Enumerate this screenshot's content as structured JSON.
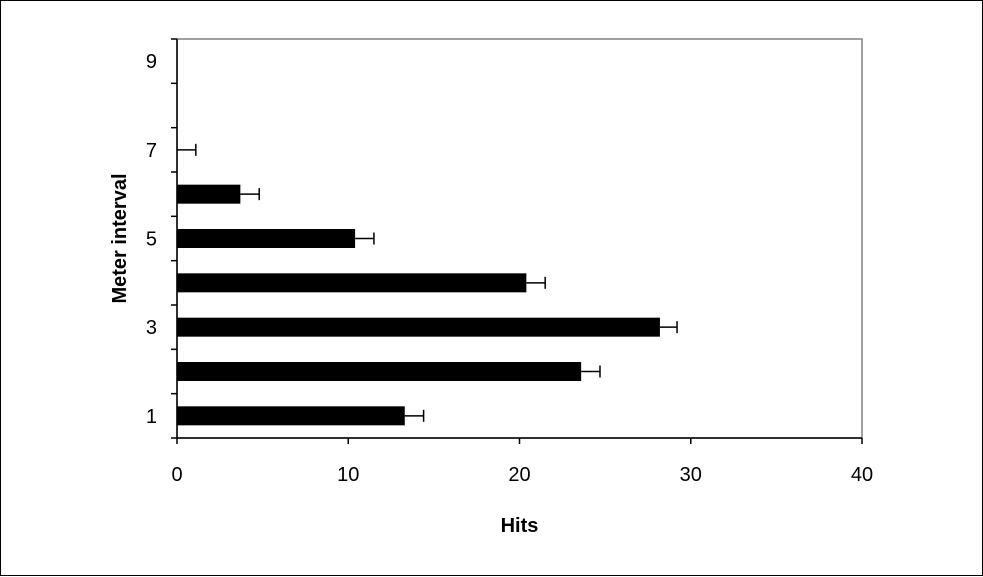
{
  "chart_data": {
    "type": "bar",
    "orientation": "horizontal",
    "xlabel": "Hits",
    "ylabel": "Meter interval",
    "xlim": [
      0,
      40
    ],
    "x_ticks": [
      0,
      10,
      20,
      30,
      40
    ],
    "ylim": [
      0.5,
      9.5
    ],
    "y_tick_labels": [
      "1",
      "3",
      "5",
      "7",
      "9"
    ],
    "categories": [
      1,
      2,
      3,
      4,
      5,
      6,
      7,
      8,
      9
    ],
    "values": [
      13.3,
      23.6,
      28.2,
      20.4,
      10.4,
      3.7,
      0,
      0,
      0
    ],
    "errors": [
      1.1,
      1.1,
      1.0,
      1.1,
      1.1,
      1.1,
      1.1,
      0,
      0
    ],
    "grid": false,
    "legend": "none",
    "colors": {
      "bar": "#000000",
      "axis": "#000000",
      "plot_border": "#808080",
      "background": "#ffffff"
    }
  }
}
